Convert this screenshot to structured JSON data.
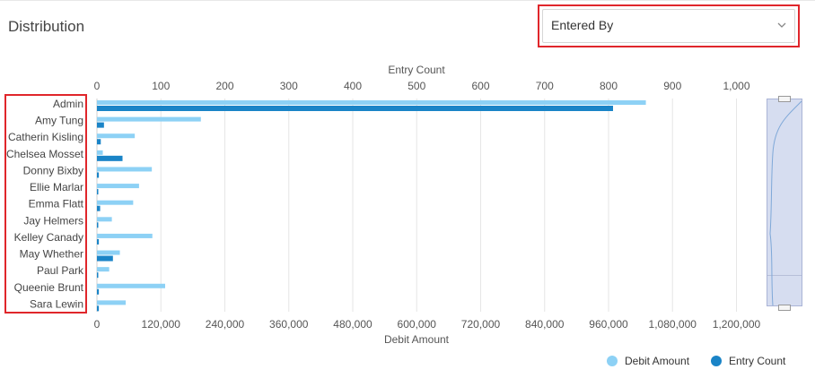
{
  "header": {
    "title": "Distribution",
    "group_by_value": "Entered By"
  },
  "legend": [
    {
      "label": "Debit Amount",
      "color": "#8dd1f5"
    },
    {
      "label": "Entry Count",
      "color": "#1a84c7"
    }
  ],
  "chart_data": {
    "type": "bar",
    "orientation": "horizontal",
    "categories": [
      "Admin",
      "Amy Tung",
      "Catherin Kisling",
      "Chelsea Mosset",
      "Donny Bixby",
      "Ellie Marlar",
      "Emma Flatt",
      "Jay Helmers",
      "Kelley Canady",
      "May Whether",
      "Paul Park",
      "Queenie Brunt",
      "Sara Lewin"
    ],
    "series": [
      {
        "name": "Debit Amount",
        "axis": "bottom",
        "color": "#8dd1f5",
        "values": [
          1030000,
          195000,
          71000,
          11000,
          103000,
          79000,
          68000,
          28000,
          104000,
          43000,
          23000,
          128000,
          54000
        ]
      },
      {
        "name": "Entry Count",
        "axis": "top",
        "color": "#1a84c7",
        "values": [
          807,
          11,
          6,
          40,
          3,
          2,
          5,
          1,
          3,
          25,
          1,
          3,
          3
        ]
      }
    ],
    "top_axis": {
      "label": "Entry Count",
      "range": [
        0,
        1040
      ],
      "ticks": [
        "0",
        "100",
        "200",
        "300",
        "400",
        "500",
        "600",
        "700",
        "800",
        "900",
        "1,000"
      ]
    },
    "bottom_axis": {
      "label": "Debit Amount",
      "range": [
        0,
        1248000
      ],
      "ticks": [
        "0",
        "120,000",
        "240,000",
        "360,000",
        "480,000",
        "600,000",
        "720,000",
        "840,000",
        "960,000",
        "1,080,000",
        "1,200,000"
      ]
    },
    "grid": true,
    "legend_position": "bottom-right"
  }
}
